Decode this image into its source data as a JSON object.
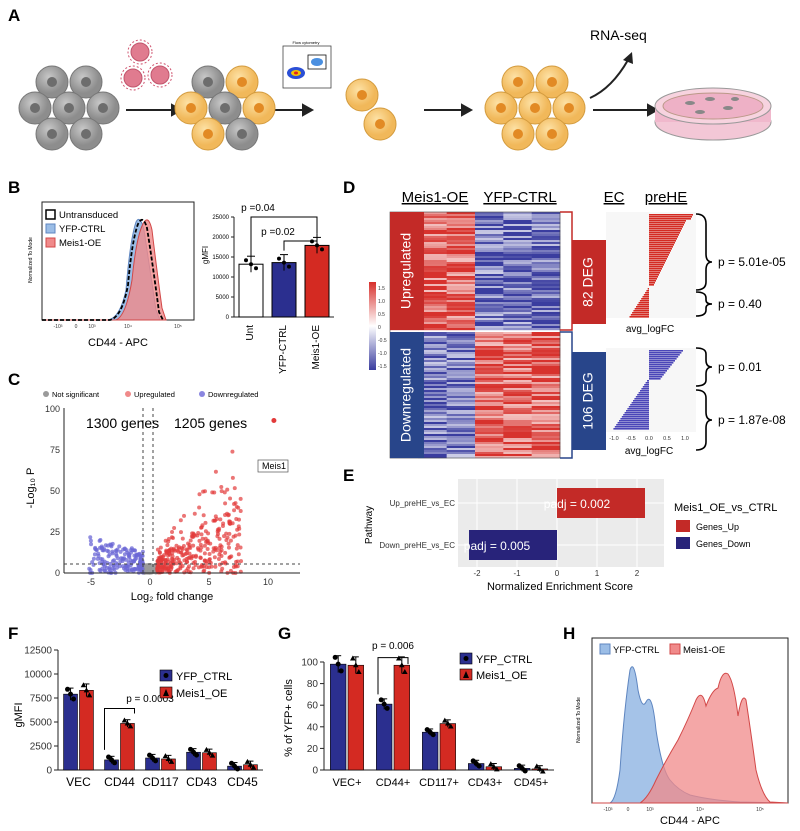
{
  "panels": {
    "a": {
      "label": "A",
      "rnaseq": "RNA-seq",
      "facs_title": "Flow cytometry"
    },
    "b": {
      "label": "B",
      "hist": {
        "ylabel": "Normalized To Mode",
        "xlabel": "CD44 - APC",
        "x_ticks": [
          "-10³",
          "0",
          "10³",
          "10⁴",
          "10⁵"
        ],
        "legend": [
          "Untransduced",
          "YFP-CTRL",
          "Meis1-OE"
        ]
      },
      "bar": {
        "ylabel": "gMFI",
        "y_ticks": [
          "0",
          "5000",
          "10000",
          "15000",
          "20000",
          "25000"
        ],
        "categories": [
          "Unt",
          "YFP-CTRL",
          "Meis1-OE"
        ],
        "p1": "p =0.04",
        "p2": "p =0.02"
      }
    },
    "c": {
      "label": "C",
      "legend": [
        "Not significant",
        "Upregulated",
        "Downregulated"
      ],
      "left_count": "1300 genes",
      "right_count": "1205 genes",
      "gene": "Meis1",
      "ylabel": "-Log₁₀ P",
      "xlabel": "Log₂ fold change",
      "x_ticks": [
        "-5",
        "0",
        "5",
        "10"
      ],
      "y_ticks": [
        "0",
        "25",
        "50",
        "75",
        "100"
      ]
    },
    "d": {
      "label": "D",
      "col1": "Meis1-OE",
      "col2": "YFP-CTRL",
      "col3": "EC",
      "col4": "preHE",
      "up": "Upregulated",
      "down": "Downregulated",
      "deg_up": "82 DEG",
      "deg_down": "106 DEG",
      "p_up1": "p = 5.01e-05",
      "p_up2": "p = 0.40",
      "p_dn1": "p = 0.01",
      "p_dn2": "p = 1.87e-08",
      "axis": "avg_logFC",
      "axis_ticks": [
        "-1.0",
        "-0.5",
        "0.0",
        "0.5",
        "1.0"
      ],
      "scale": [
        "1.5",
        "1.0",
        "0.5",
        "0",
        "-0.5",
        "-1.0",
        "-1.5"
      ]
    },
    "e": {
      "label": "E",
      "ylabel": "Pathway",
      "xlabel": "Normalized Enrichment Score",
      "pathways": [
        "Up_preHE_vs_EC",
        "Down_preHE_vs_EC"
      ],
      "padj_up": "padj = 0.002",
      "padj_down": "padj = 0.005",
      "legend_title": "Meis1_OE_vs_CTRL",
      "legend": [
        "Genes_Up",
        "Genes_Down"
      ],
      "x_ticks": [
        "-2",
        "-1",
        "0",
        "1",
        "2"
      ]
    },
    "f": {
      "label": "F",
      "ylabel": "gMFI",
      "pval": "p = 0.0003",
      "legend": [
        "YFP_CTRL",
        "Meis1_OE"
      ],
      "y_ticks": [
        "0",
        "2500",
        "5000",
        "7500",
        "10000",
        "12500"
      ]
    },
    "g": {
      "label": "G",
      "ylabel": "% of YFP+ cells",
      "pval": "p = 0.006",
      "legend": [
        "YFP_CTRL",
        "Meis1_OE"
      ],
      "y_ticks": [
        "0",
        "20",
        "40",
        "60",
        "80",
        "100"
      ]
    },
    "h": {
      "label": "H",
      "legend": [
        "YFP-CTRL",
        "Meis1-OE"
      ],
      "xlabel": "CD44 - APC",
      "ylabel": "Normalized To Mode",
      "x_ticks": [
        "-10³",
        "0",
        "10³",
        "10⁴",
        "10⁵"
      ]
    }
  },
  "colors": {
    "blue": "#2b2f8f",
    "red": "#d42a22",
    "blue_light": "#9bbde6",
    "red_light": "#f08a8a",
    "yellow": "#f4c16a",
    "gray": "#9a9a9a"
  },
  "chart_data": [
    {
      "type": "bar",
      "panel": "B",
      "title": "",
      "ylabel": "gMFI",
      "categories": [
        "Unt",
        "YFP-CTRL",
        "Meis1-OE"
      ],
      "values": [
        13200,
        13600,
        17900
      ],
      "ylim": [
        0,
        25000
      ]
    },
    {
      "type": "bar",
      "panel": "E",
      "xlabel": "Normalized Enrichment Score",
      "categories": [
        "Up_preHE_vs_EC",
        "Down_preHE_vs_EC"
      ],
      "values": [
        2.2,
        -2.2
      ],
      "ylim": [
        -2.4,
        2.4
      ]
    },
    {
      "type": "bar",
      "panel": "F",
      "ylabel": "gMFI",
      "categories": [
        "VEC",
        "CD44",
        "CD117",
        "CD43",
        "CD45"
      ],
      "series": [
        {
          "name": "YFP_CTRL",
          "values": [
            7900,
            1050,
            1250,
            1850,
            400
          ]
        },
        {
          "name": "Meis1_OE",
          "values": [
            8300,
            4850,
            1150,
            1800,
            550
          ]
        }
      ],
      "ylim": [
        0,
        12500
      ]
    },
    {
      "type": "bar",
      "panel": "G",
      "ylabel": "% of YFP+ cells",
      "categories": [
        "VEC+",
        "CD44+",
        "CD117+",
        "CD43+",
        "CD45+"
      ],
      "series": [
        {
          "name": "YFP_CTRL",
          "values": [
            98,
            61,
            35,
            6,
            1.5
          ]
        },
        {
          "name": "Meis1_OE",
          "values": [
            97,
            97,
            43,
            3,
            1
          ]
        }
      ],
      "ylim": [
        0,
        100
      ]
    }
  ]
}
